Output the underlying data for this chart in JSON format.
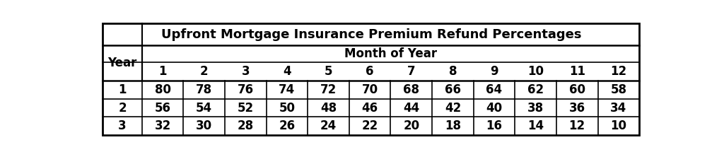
{
  "title": "Upfront Mortgage Insurance Premium Refund Percentages",
  "sub_header": "Month of Year",
  "col_header": [
    "Year",
    "1",
    "2",
    "3",
    "4",
    "5",
    "6",
    "7",
    "8",
    "9",
    "10",
    "11",
    "12"
  ],
  "rows": [
    [
      "1",
      "80",
      "78",
      "76",
      "74",
      "72",
      "70",
      "68",
      "66",
      "64",
      "62",
      "60",
      "58"
    ],
    [
      "2",
      "56",
      "54",
      "52",
      "50",
      "48",
      "46",
      "44",
      "42",
      "40",
      "38",
      "36",
      "34"
    ],
    [
      "3",
      "32",
      "30",
      "28",
      "26",
      "24",
      "22",
      "20",
      "18",
      "16",
      "14",
      "12",
      "10"
    ]
  ],
  "bg_color": "#ffffff",
  "text_color": "#000000",
  "title_fontsize": 13,
  "header_fontsize": 12,
  "cell_fontsize": 12,
  "figsize": [
    10.24,
    2.22
  ],
  "dpi": 100
}
